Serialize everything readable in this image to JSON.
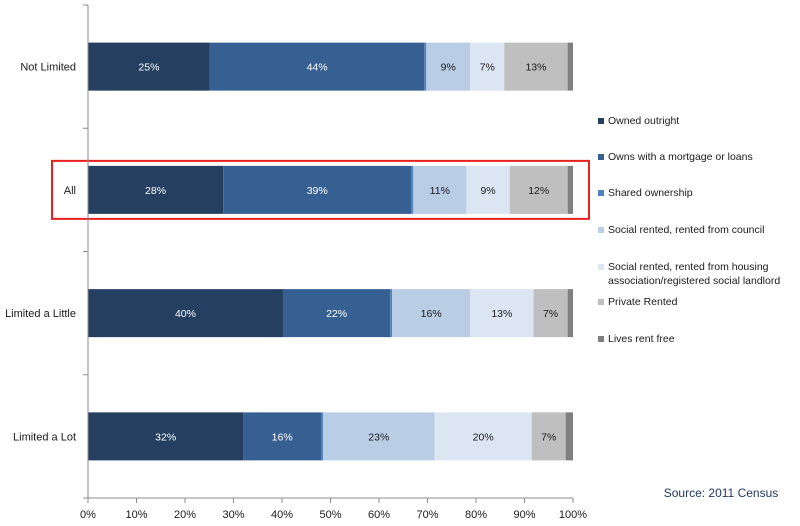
{
  "chart_data": {
    "type": "bar",
    "orientation": "horizontal",
    "stacked": "percent",
    "categories": [
      "Not Limited",
      "All",
      "Limited a Little",
      "Limited a Lot"
    ],
    "highlighted_category": "All",
    "series": [
      {
        "name": "Owned outright",
        "color": "#243f60",
        "values": [
          25,
          28,
          40,
          32
        ],
        "labels": [
          "25%",
          "28%",
          "40%",
          "32%"
        ]
      },
      {
        "name": "Owns with a mortgage or loans",
        "color": "#376092",
        "values": [
          44,
          39,
          22,
          16
        ],
        "labels": [
          "44%",
          "39%",
          "22%",
          "16%"
        ]
      },
      {
        "name": "Shared ownership",
        "color": "#4f81bd",
        "values": [
          0.4,
          0.4,
          0.4,
          0.4
        ],
        "labels": [
          "",
          "",
          "",
          ""
        ]
      },
      {
        "name": "Social rented, rented from council",
        "color": "#b9cde5",
        "values": [
          9,
          11,
          16,
          23
        ],
        "labels": [
          "9%",
          "11%",
          "16%",
          "23%"
        ]
      },
      {
        "name": "Social rented,  rented from housing association/registered social landlord",
        "color": "#dce6f2",
        "values": [
          7,
          9,
          13,
          20
        ],
        "labels": [
          "7%",
          "9%",
          "13%",
          "20%"
        ]
      },
      {
        "name": "Private Rented",
        "color": "#bfbfbf",
        "values": [
          13,
          12,
          7,
          7
        ],
        "labels": [
          "13%",
          "12%",
          "7%",
          "7%"
        ]
      },
      {
        "name": "Lives rent free",
        "color": "#7f7f7f",
        "values": [
          1.1,
          1.1,
          1.1,
          1.5
        ],
        "labels": [
          "",
          "",
          "",
          ""
        ]
      }
    ],
    "x_ticks": [
      "0%",
      "10%",
      "20%",
      "30%",
      "40%",
      "50%",
      "60%",
      "70%",
      "80%",
      "90%",
      "100%"
    ],
    "xlim": [
      0,
      100
    ],
    "grid": false,
    "legend_position": "right",
    "highlight_color": "#e8201e"
  },
  "source": "Source: 2011 Census"
}
